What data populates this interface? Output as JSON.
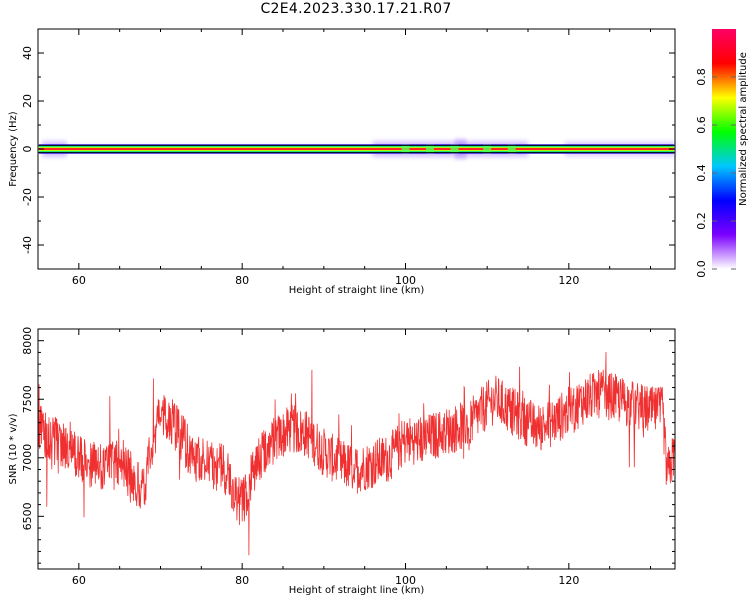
{
  "title": "C2E4.2023.330.17.21.R07",
  "chart_data": [
    {
      "type": "heatmap",
      "xlabel": "Height of straight line (km)",
      "ylabel": "Frequency (Hz)",
      "xlim": [
        55,
        133
      ],
      "ylim": [
        -50,
        50
      ],
      "x_ticks": [
        60,
        80,
        100,
        120
      ],
      "y_ticks": [
        -40,
        -20,
        0,
        20,
        40
      ],
      "grid": false,
      "colorbar": {
        "label": "Normalized spectral amplitude",
        "range": [
          0,
          1
        ],
        "ticks": [
          0.0,
          0.2,
          0.4,
          0.6,
          0.8
        ],
        "colormap": [
          "#ffffff",
          "#7b00ff",
          "#0000ff",
          "#00c8ff",
          "#00ff00",
          "#ffff00",
          "#ff0000",
          "#ff0066"
        ]
      },
      "signal_band_hz": [
        -2,
        2
      ],
      "reference_lines_hz": [
        -1.5,
        1.5
      ]
    },
    {
      "type": "line",
      "xlabel": "Height of straight line (km)",
      "ylabel": "SNR (10 * v/v)",
      "xlim": [
        55,
        133
      ],
      "ylim": [
        6050,
        8100
      ],
      "x_ticks": [
        60,
        80,
        100,
        120
      ],
      "y_ticks": [
        6500,
        7000,
        7500,
        8000
      ],
      "grid": false,
      "series": [
        {
          "color": "#f03030",
          "x": [
            55,
            57,
            59,
            61,
            63,
            65,
            67,
            68,
            69,
            70,
            72,
            74,
            76,
            78,
            79,
            80,
            81,
            82,
            84,
            86,
            88,
            90,
            92,
            94,
            96,
            98,
            100,
            102,
            104,
            106,
            108,
            110,
            111,
            112,
            114,
            116,
            118,
            120,
            122,
            124,
            126,
            128,
            130,
            131.5,
            132,
            133
          ],
          "y": [
            7250,
            7150,
            7050,
            6950,
            6900,
            6950,
            6800,
            6700,
            7150,
            7400,
            7250,
            7000,
            6950,
            6900,
            6700,
            6600,
            6800,
            7000,
            7150,
            7250,
            7200,
            7050,
            6950,
            6900,
            6950,
            7000,
            7150,
            7150,
            7200,
            7250,
            7300,
            7450,
            7500,
            7450,
            7350,
            7250,
            7300,
            7400,
            7500,
            7550,
            7500,
            7450,
            7400,
            7400,
            6850,
            7050
          ]
        }
      ]
    }
  ]
}
